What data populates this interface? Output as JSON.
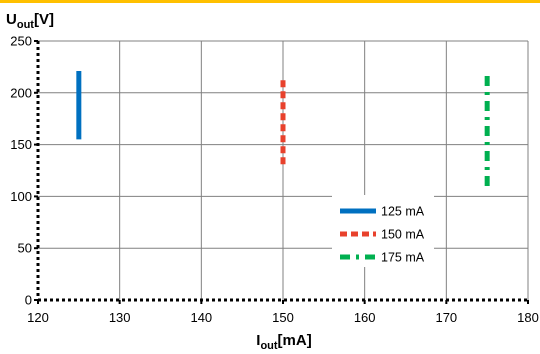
{
  "colors": {
    "top_rule": "#FFC000",
    "grid": "#808080",
    "axis": "#000000",
    "background": "#FFFFFF"
  },
  "chart_data": {
    "type": "line",
    "ylabel": {
      "main": "U",
      "sub": "out",
      "unit": "[V]"
    },
    "xlabel": {
      "main": "I",
      "sub": "out",
      "unit": "[mA]"
    },
    "xlim": [
      120,
      180
    ],
    "ylim": [
      0,
      250
    ],
    "x_ticks": [
      120,
      130,
      140,
      150,
      160,
      170,
      180
    ],
    "y_ticks": [
      0,
      50,
      100,
      150,
      200,
      250
    ],
    "grid": true,
    "legend": "lower-right",
    "series": [
      {
        "name": "125 mA",
        "color": "#0070C0",
        "style": "solid",
        "x": [
          125,
          125
        ],
        "y": [
          155,
          221
        ]
      },
      {
        "name": "150 mA",
        "color": "#E8412C",
        "style": "dashed",
        "x": [
          150,
          150
        ],
        "y": [
          131,
          213
        ]
      },
      {
        "name": "175 mA",
        "color": "#00B050",
        "style": "dashdot",
        "x": [
          175,
          175
        ],
        "y": [
          110,
          220
        ]
      }
    ]
  }
}
